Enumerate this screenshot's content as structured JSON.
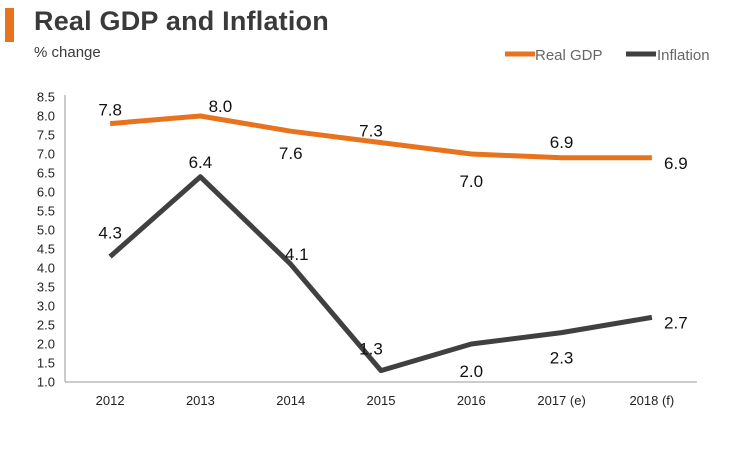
{
  "chart_data": {
    "type": "line",
    "title": "Real GDP and Inflation",
    "subtitle": "% change",
    "xlabel": "",
    "ylabel": "% change",
    "categories": [
      "2012",
      "2013",
      "2014",
      "2015",
      "2016",
      "2017 (e)",
      "2018 (f)"
    ],
    "ylim": [
      1.0,
      8.5
    ],
    "yticks": [
      "1.0",
      "1.5",
      "2.0",
      "2.5",
      "3.0",
      "3.5",
      "4.0",
      "4.5",
      "5.0",
      "5.5",
      "6.0",
      "6.5",
      "7.0",
      "7.5",
      "8.0",
      "8.5"
    ],
    "grid": false,
    "legend_position": "top-right",
    "series": [
      {
        "name": "Real GDP",
        "color": "#e8731f",
        "values": [
          7.8,
          8.0,
          7.6,
          7.3,
          7.0,
          6.9,
          6.9
        ],
        "labels": [
          "7.8",
          "8.0",
          "7.6",
          "7.3",
          "7.0",
          "6.9",
          "6.9"
        ]
      },
      {
        "name": "Inflation",
        "color": "#404040",
        "values": [
          4.3,
          6.4,
          4.1,
          1.3,
          2.0,
          2.3,
          2.7
        ],
        "labels": [
          "4.3",
          "6.4",
          "4.1",
          "1.3",
          "2.0",
          "2.3",
          "2.7"
        ]
      }
    ]
  }
}
